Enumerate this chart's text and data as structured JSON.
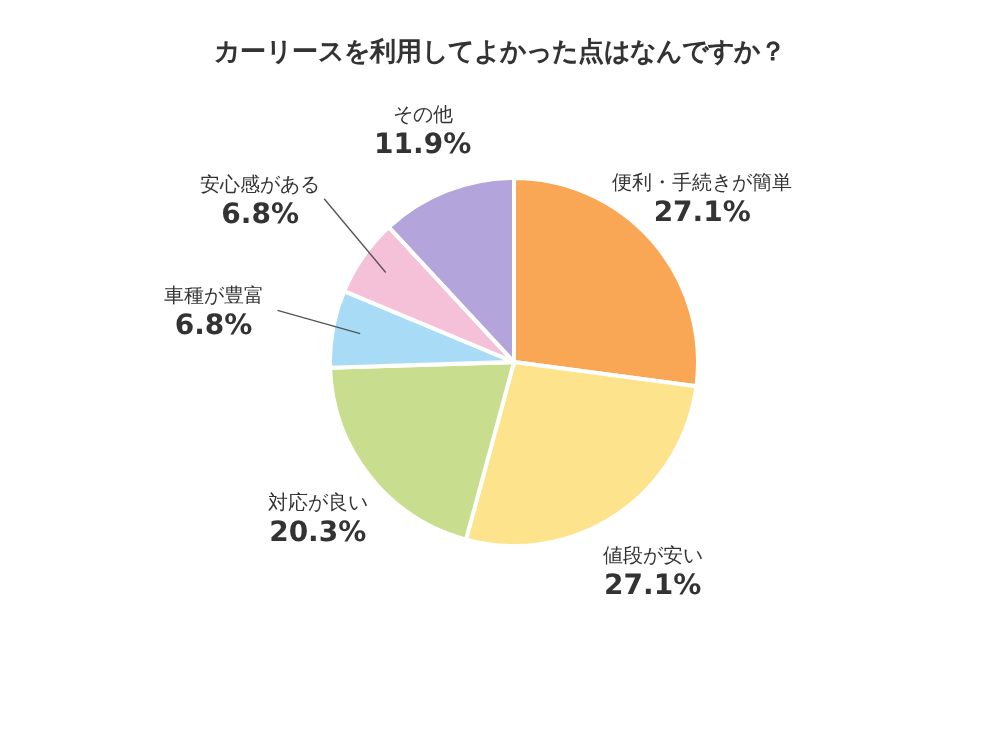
{
  "chart_data": {
    "type": "pie",
    "title": "カーリースを利用してよかった点はなんですか？",
    "categories": [
      "便利・手続きが簡単",
      "値段が安い",
      "対応が良い",
      "車種が豊富",
      "安心感がある",
      "その他"
    ],
    "values": [
      27.1,
      27.1,
      20.3,
      6.8,
      6.8,
      11.9
    ],
    "value_labels": [
      "27.1%",
      "27.1%",
      "20.3%",
      "6.8%",
      "6.8%",
      "11.9%"
    ],
    "colors": [
      "#f9a655",
      "#fde48c",
      "#c8de8e",
      "#a8dcf6",
      "#f5c1d9",
      "#b3a4db"
    ]
  }
}
